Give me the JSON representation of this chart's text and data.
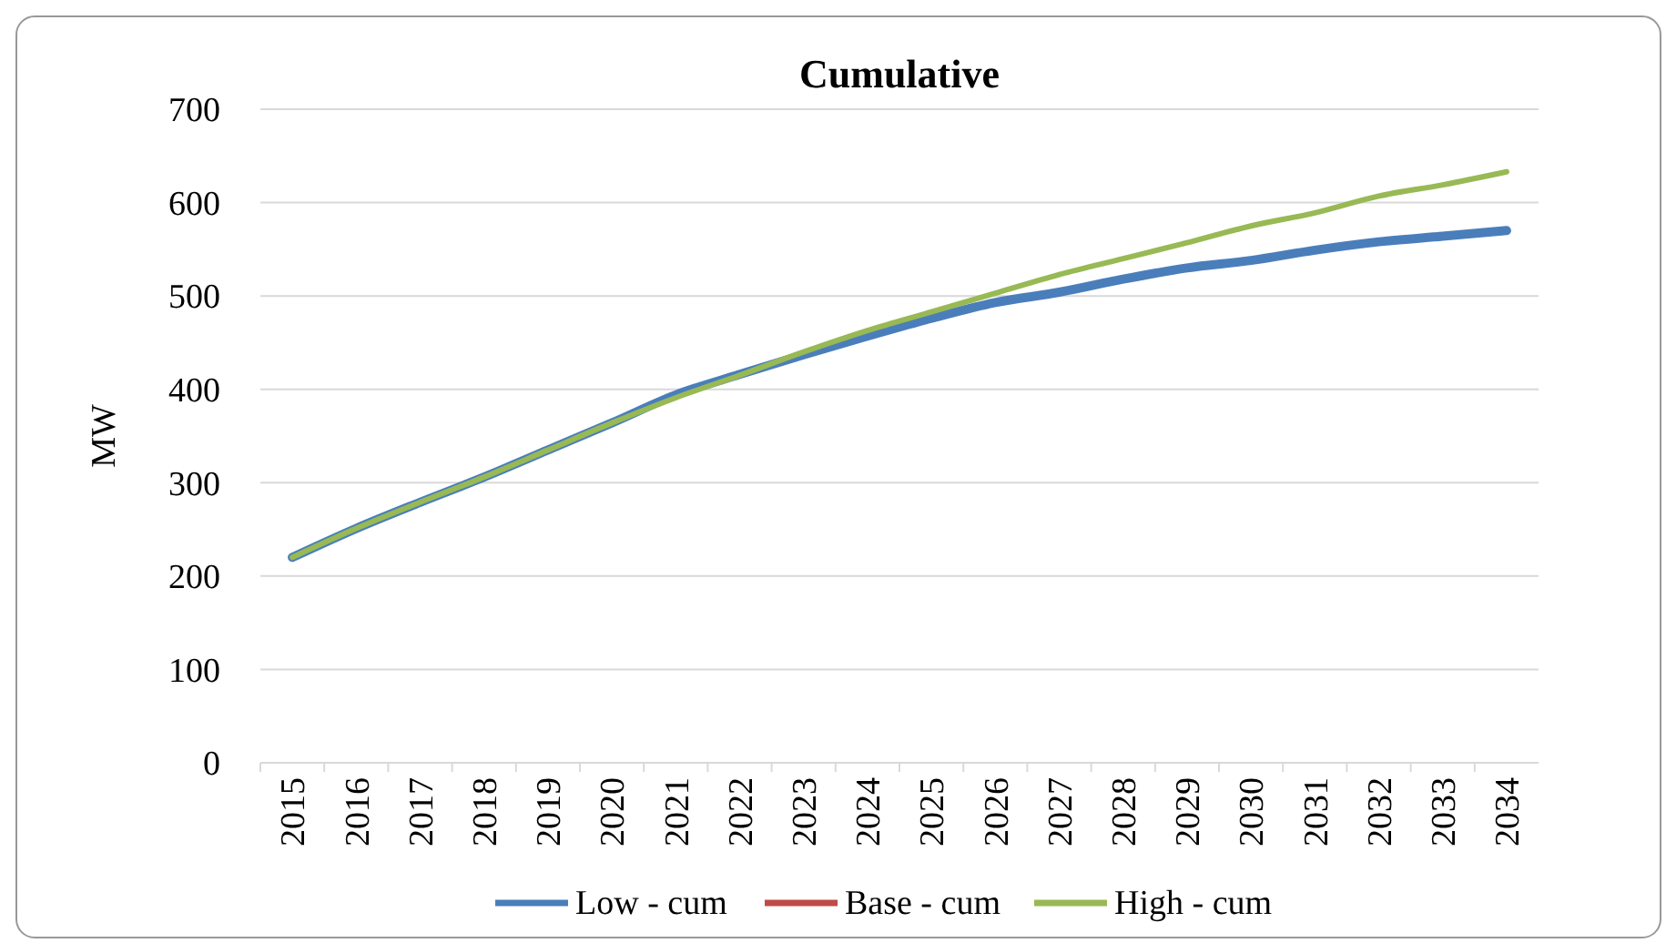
{
  "chart_data": {
    "type": "line",
    "title": "Cumulative",
    "ylabel": "MW",
    "categories": [
      "2015",
      "2016",
      "2017",
      "2018",
      "2019",
      "2020",
      "2021",
      "2022",
      "2023",
      "2024",
      "2025",
      "2026",
      "2027",
      "2028",
      "2029",
      "2030",
      "2031",
      "2032",
      "2033",
      "2034"
    ],
    "series": [
      {
        "name": "Low - cum",
        "color": "#4a7ebb",
        "values": [
          220,
          251,
          279,
          306,
          335,
          364,
          394,
          416,
          437,
          457,
          476,
          493,
          504,
          518,
          530,
          538,
          549,
          558,
          564,
          570
        ]
      },
      {
        "name": "Base - cum",
        "color": "#be4b48",
        "values": [
          null,
          null,
          null,
          null,
          null,
          null,
          null,
          null,
          null,
          null,
          null,
          null,
          null,
          null,
          null,
          null,
          null,
          null,
          null,
          null
        ]
      },
      {
        "name": "High - cum",
        "color": "#98b954",
        "values": [
          220,
          251,
          279,
          306,
          335,
          364,
          391,
          415,
          440,
          463,
          483,
          503,
          523,
          540,
          557,
          575,
          589,
          607,
          619,
          633
        ]
      }
    ],
    "ylim": [
      0,
      700
    ],
    "yticks": [
      0,
      100,
      200,
      300,
      400,
      500,
      600,
      700
    ],
    "grid": "y",
    "legend": "bottom"
  }
}
